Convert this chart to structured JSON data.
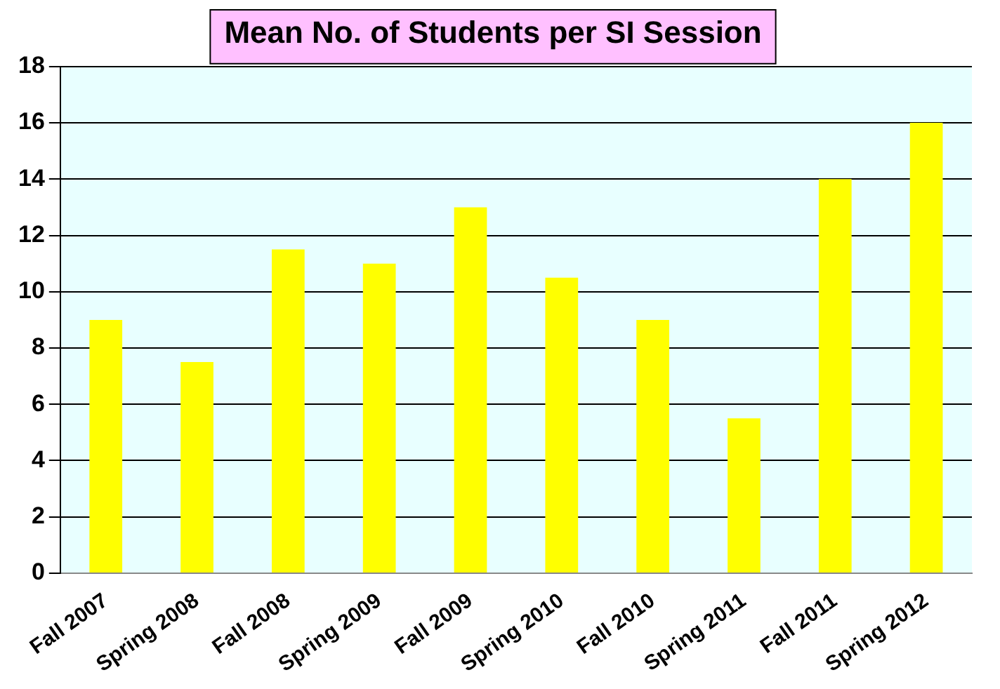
{
  "chart_data": {
    "type": "bar",
    "title": "Mean No. of Students per SI Session",
    "categories": [
      "Fall 2007",
      "Spring 2008",
      "Fall 2008",
      "Spring 2009",
      "Fall 2009",
      "Spring 2010",
      "Fall 2010",
      "Spring 2011",
      "Fall 2011",
      "Spring 2012"
    ],
    "values": [
      9,
      7.5,
      11.5,
      11,
      13,
      10.5,
      9,
      5.5,
      14,
      16
    ],
    "color": "#ffff00",
    "ylim": [
      0,
      18
    ],
    "yticks": [
      0,
      2,
      4,
      6,
      8,
      10,
      12,
      14,
      16,
      18
    ],
    "grid": "y"
  }
}
